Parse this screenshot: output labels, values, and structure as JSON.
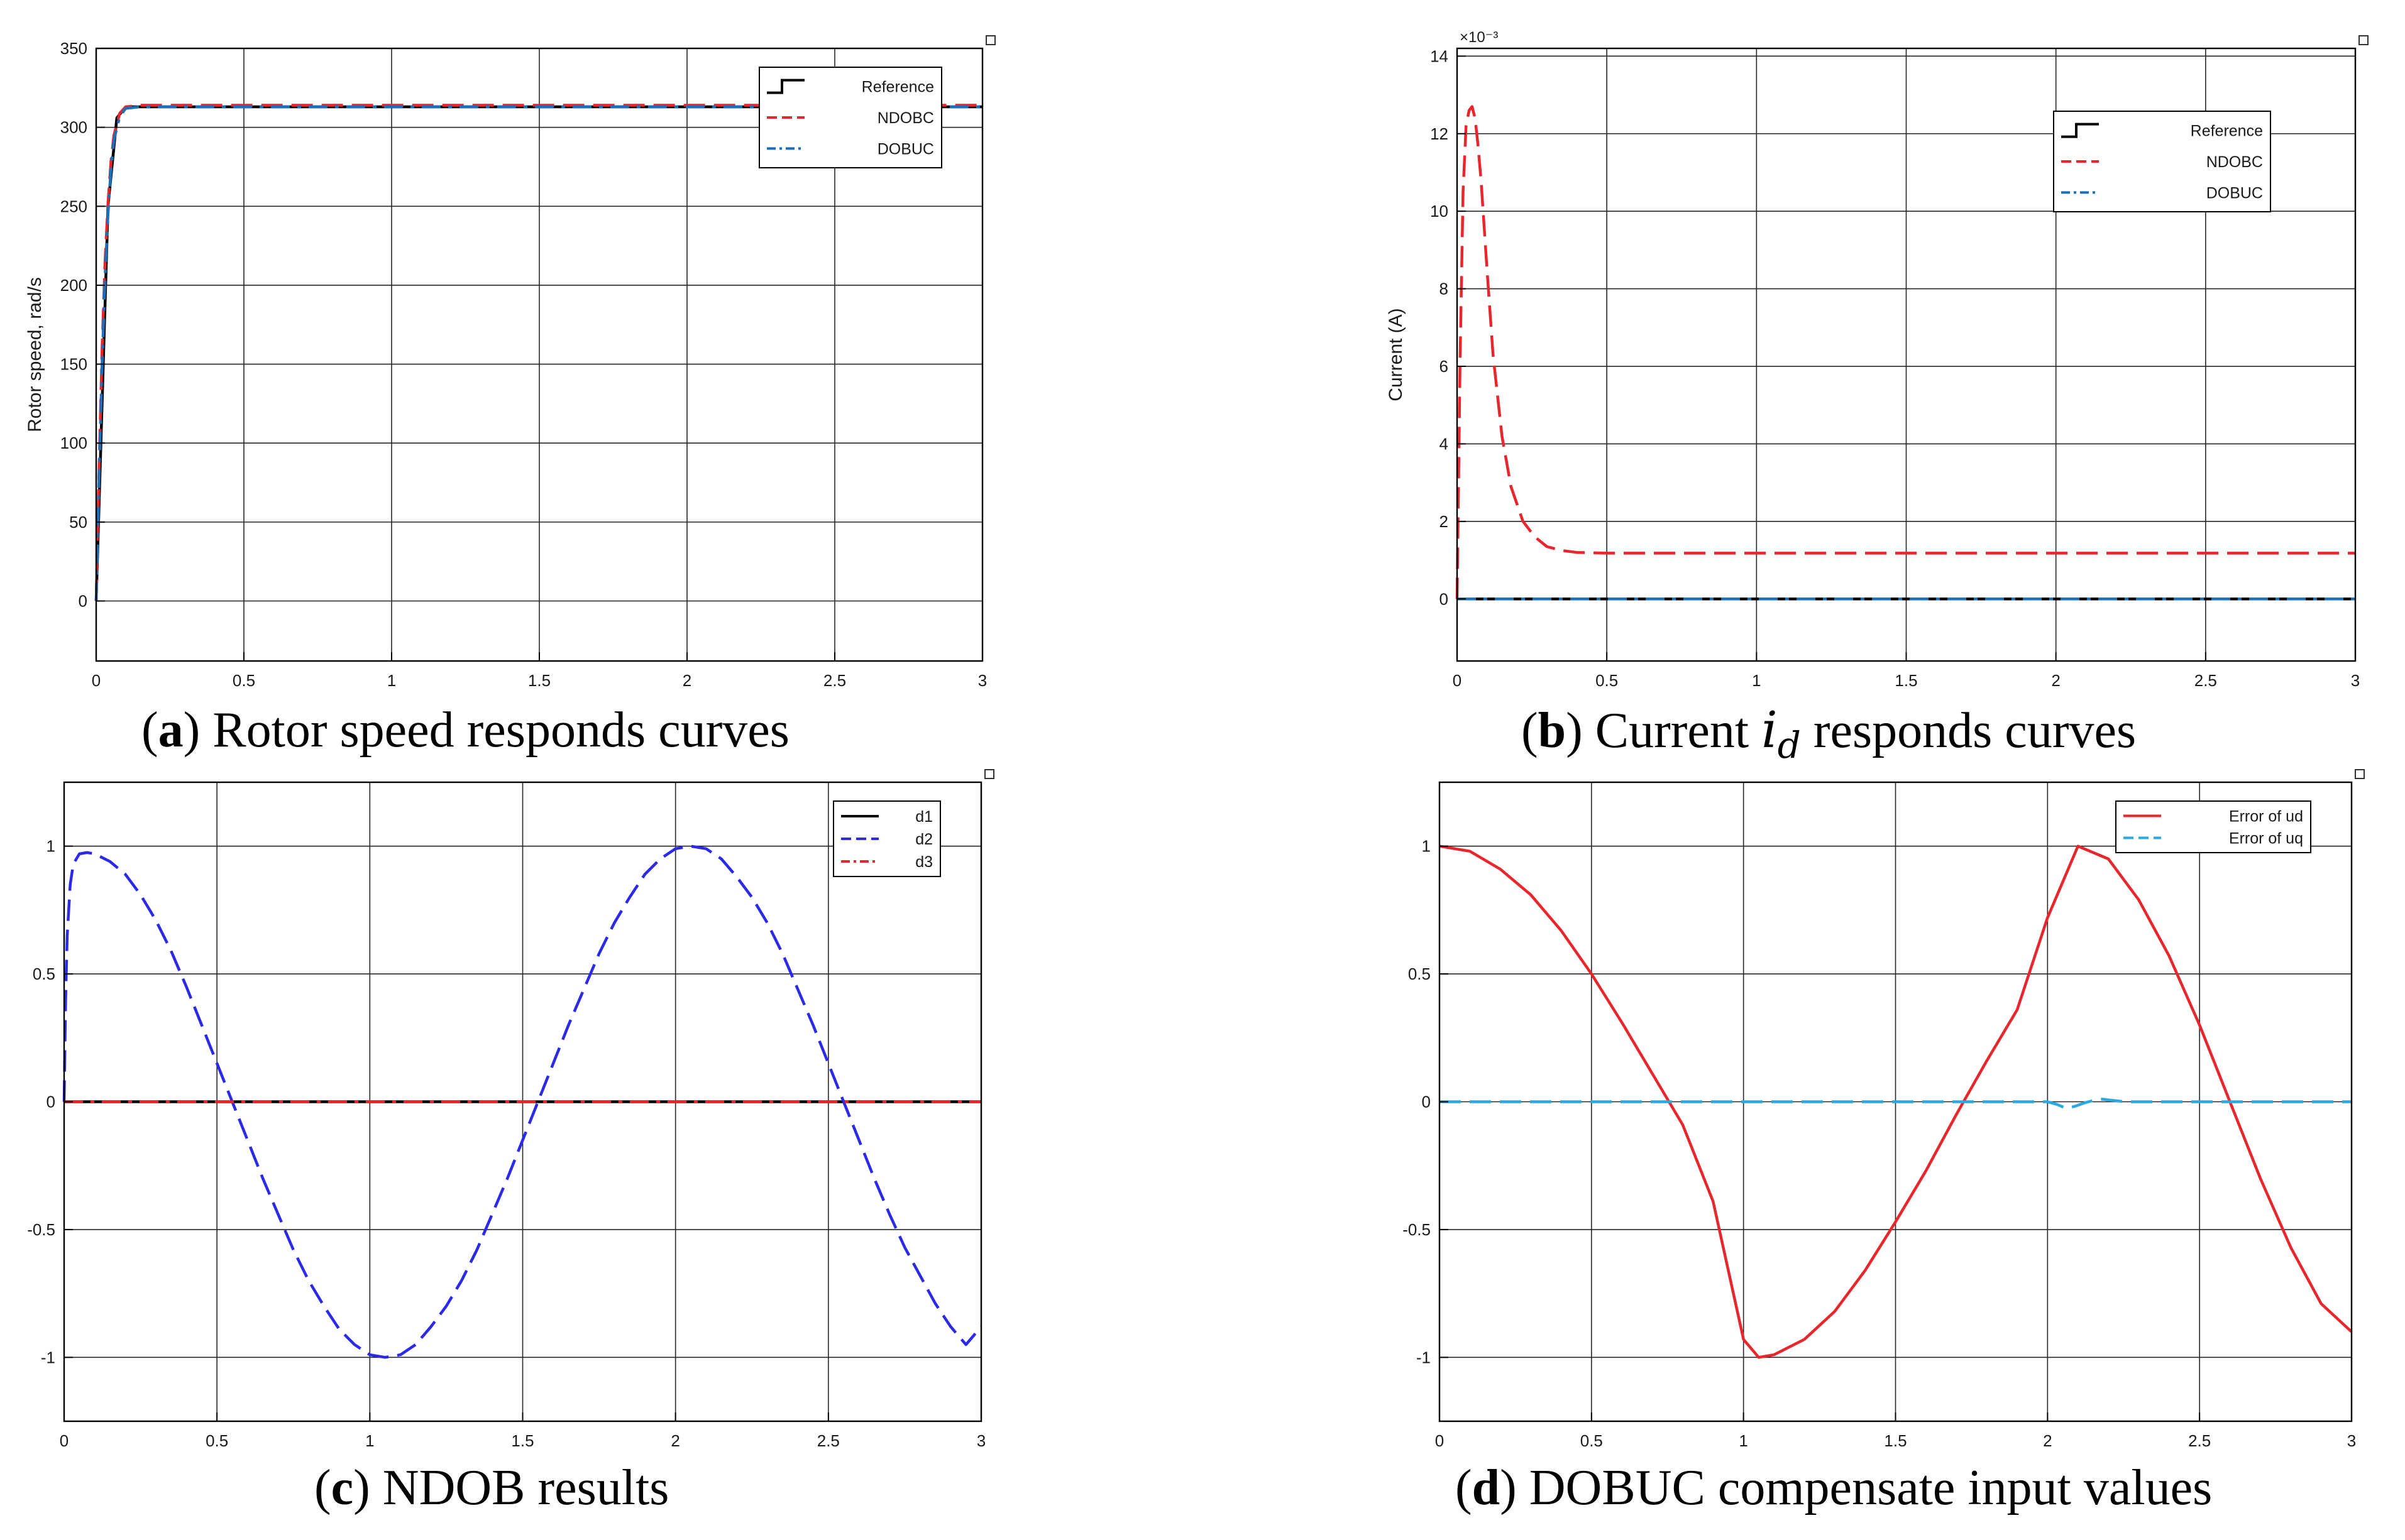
{
  "colors": {
    "reference": "#000000",
    "ndobc": "#e8262b",
    "dobuc": "#1c6fb8",
    "d1": "#000000",
    "d2": "#2a2ae8",
    "d3": "#e8262b",
    "err_ud": "#e8262b",
    "err_uq": "#29a9e0",
    "grid": "#262626",
    "axis": "#000000"
  },
  "captions": [
    {
      "open": "(",
      "letter": "a",
      "close": ")",
      "text": " Rotor speed responds curves",
      "symbol": "",
      "text_after": ""
    },
    {
      "open": "(",
      "letter": "b",
      "close": ")",
      "text": " Current ",
      "symbol": "i",
      "subscript": "d",
      "text_after": " responds curves"
    },
    {
      "open": "(",
      "letter": "c",
      "close": ")",
      "text": " NDOB results",
      "symbol": "",
      "text_after": ""
    },
    {
      "open": "(",
      "letter": "d",
      "close": ")",
      "text": " DOBUC compensate input values",
      "symbol": "",
      "text_after": ""
    }
  ],
  "chart_data": [
    {
      "id": "a",
      "type": "line",
      "title": "",
      "xlabel": "",
      "ylabel": "Rotor speed, rad/s",
      "xlim": [
        0,
        3
      ],
      "ylim": [
        -38,
        350
      ],
      "xticks": [
        0,
        0.5,
        1,
        1.5,
        2,
        2.5,
        3
      ],
      "xtick_labels": [
        "0",
        "0.5",
        "1",
        "1.5",
        "2",
        "2.5",
        "3"
      ],
      "yticks": [
        0,
        50,
        100,
        150,
        200,
        250,
        300,
        350
      ],
      "ytick_labels": [
        "0",
        "50",
        "100",
        "150",
        "200",
        "250",
        "300",
        "350"
      ],
      "exponent_label": "",
      "grid": true,
      "legend": "top-right",
      "series": [
        {
          "name": "Reference",
          "style": "step",
          "color_key": "reference",
          "x": [
            0,
            0.04,
            0.07,
            0.1,
            3
          ],
          "y": [
            0,
            250,
            306,
            313,
            313
          ]
        },
        {
          "name": "NDOBC",
          "style": "dashed",
          "color_key": "ndobc",
          "x": [
            0,
            0.01,
            0.02,
            0.03,
            0.04,
            0.05,
            0.06,
            0.08,
            0.1,
            0.15,
            3
          ],
          "y": [
            0,
            85,
            160,
            215,
            252,
            278,
            295,
            309,
            313,
            314,
            314
          ]
        },
        {
          "name": "DOBUC",
          "style": "dashdot",
          "color_key": "dobuc",
          "x": [
            0,
            0.01,
            0.02,
            0.03,
            0.04,
            0.05,
            0.06,
            0.08,
            0.1,
            0.15,
            3
          ],
          "y": [
            0,
            80,
            150,
            205,
            245,
            273,
            292,
            307,
            312,
            313,
            313
          ]
        }
      ]
    },
    {
      "id": "b",
      "type": "line",
      "title": "",
      "xlabel": "",
      "ylabel": "Current (A)",
      "xlim": [
        0,
        3
      ],
      "ylim": [
        -0.0016,
        0.0142
      ],
      "xticks": [
        0,
        0.5,
        1,
        1.5,
        2,
        2.5,
        3
      ],
      "xtick_labels": [
        "0",
        "0.5",
        "1",
        "1.5",
        "2",
        "2.5",
        "3"
      ],
      "yticks": [
        0,
        0.002,
        0.004,
        0.006,
        0.008,
        0.01,
        0.012,
        0.014
      ],
      "ytick_labels": [
        "0",
        "2",
        "4",
        "6",
        "8",
        "10",
        "12",
        "14"
      ],
      "exponent_label": "×10⁻³",
      "grid": true,
      "legend": "top-right",
      "series": [
        {
          "name": "Reference",
          "style": "step",
          "color_key": "reference",
          "x": [
            0,
            3
          ],
          "y": [
            0,
            0
          ]
        },
        {
          "name": "NDOBC",
          "style": "dashed",
          "color_key": "ndobc",
          "x": [
            0,
            0.01,
            0.02,
            0.03,
            0.04,
            0.05,
            0.06,
            0.07,
            0.08,
            0.1,
            0.12,
            0.15,
            0.18,
            0.22,
            0.26,
            0.3,
            0.35,
            0.4,
            0.5,
            3
          ],
          "y": [
            0,
            0.0062,
            0.0105,
            0.0122,
            0.0126,
            0.0127,
            0.0124,
            0.0117,
            0.0108,
            0.0085,
            0.0063,
            0.0042,
            0.0029,
            0.002,
            0.0016,
            0.00135,
            0.00125,
            0.0012,
            0.00118,
            0.00118
          ]
        },
        {
          "name": "DOBUC",
          "style": "dashdot",
          "color_key": "dobuc",
          "x": [
            0,
            3
          ],
          "y": [
            0,
            0
          ]
        }
      ]
    },
    {
      "id": "c",
      "type": "line",
      "title": "",
      "xlabel": "",
      "ylabel": "",
      "xlim": [
        0,
        3
      ],
      "ylim": [
        -1.25,
        1.25
      ],
      "xticks": [
        0,
        0.5,
        1,
        1.5,
        2,
        2.5,
        3
      ],
      "xtick_labels": [
        "0",
        "0.5",
        "1",
        "1.5",
        "2",
        "2.5",
        "3"
      ],
      "yticks": [
        -1,
        -0.5,
        0,
        0.5,
        1
      ],
      "ytick_labels": [
        "-1",
        "-0.5",
        "0",
        "0.5",
        "1"
      ],
      "exponent_label": "",
      "grid": true,
      "legend": "top-right",
      "series": [
        {
          "name": "d1",
          "style": "solid",
          "color_key": "d1",
          "x": [
            0,
            3
          ],
          "y": [
            0,
            0
          ]
        },
        {
          "name": "d2",
          "style": "dashed",
          "color_key": "d2",
          "x": [
            0,
            0.005,
            0.01,
            0.02,
            0.03,
            0.05,
            0.075,
            0.1,
            0.15,
            0.2,
            0.25,
            0.3,
            0.35,
            0.4,
            0.45,
            0.5,
            0.55,
            0.6,
            0.65,
            0.7,
            0.75,
            0.8,
            0.85,
            0.9,
            0.95,
            1.0,
            1.05,
            1.1,
            1.15,
            1.2,
            1.25,
            1.3,
            1.35,
            1.4,
            1.45,
            1.5,
            1.55,
            1.6,
            1.65,
            1.7,
            1.75,
            1.8,
            1.85,
            1.9,
            1.95,
            2.0,
            2.05,
            2.1,
            2.15,
            2.2,
            2.25,
            2.3,
            2.35,
            2.4,
            2.45,
            2.5,
            2.55,
            2.6,
            2.65,
            2.7,
            2.75,
            2.8,
            2.85,
            2.9,
            2.95,
            3.0
          ],
          "y": [
            0,
            0.4,
            0.65,
            0.85,
            0.93,
            0.97,
            0.975,
            0.97,
            0.94,
            0.89,
            0.81,
            0.71,
            0.59,
            0.45,
            0.3,
            0.15,
            0.0,
            -0.15,
            -0.3,
            -0.44,
            -0.58,
            -0.7,
            -0.8,
            -0.89,
            -0.95,
            -0.99,
            -1.0,
            -0.99,
            -0.95,
            -0.88,
            -0.8,
            -0.7,
            -0.58,
            -0.44,
            -0.3,
            -0.15,
            0.0,
            0.15,
            0.3,
            0.44,
            0.58,
            0.7,
            0.8,
            0.89,
            0.95,
            0.99,
            1.0,
            0.99,
            0.95,
            0.88,
            0.8,
            0.7,
            0.58,
            0.44,
            0.3,
            0.15,
            0.0,
            -0.15,
            -0.3,
            -0.44,
            -0.57,
            -0.68,
            -0.79,
            -0.88,
            -0.95,
            -0.88
          ]
        },
        {
          "name": "d3",
          "style": "dashdot",
          "color_key": "d3",
          "x": [
            0,
            3
          ],
          "y": [
            0,
            0
          ]
        }
      ]
    },
    {
      "id": "d",
      "type": "line",
      "title": "",
      "xlabel": "",
      "ylabel": "",
      "xlim": [
        0,
        3
      ],
      "ylim": [
        -1.25,
        1.25
      ],
      "xticks": [
        0,
        0.5,
        1,
        1.5,
        2,
        2.5,
        3
      ],
      "xtick_labels": [
        "0",
        "0.5",
        "1",
        "1.5",
        "2",
        "2.5",
        "3"
      ],
      "yticks": [
        -1,
        -0.5,
        0,
        0.5,
        1
      ],
      "ytick_labels": [
        "-1",
        "-0.5",
        "0",
        "0.5",
        "1"
      ],
      "exponent_label": "",
      "grid": true,
      "legend": "top-right",
      "series": [
        {
          "name": "Error of ud",
          "style": "solid",
          "color_key": "err_ud",
          "x": [
            0,
            0.1,
            0.2,
            0.3,
            0.4,
            0.5,
            0.6,
            0.7,
            0.8,
            0.9,
            1.0,
            1.05,
            1.1,
            1.2,
            1.3,
            1.4,
            1.5,
            1.6,
            1.7,
            1.8,
            1.9,
            2.0,
            2.1,
            2.2,
            2.3,
            2.4,
            2.5,
            2.6,
            2.7,
            2.8,
            2.9,
            3.0
          ],
          "y": [
            1.0,
            0.98,
            0.91,
            0.81,
            0.67,
            0.5,
            0.31,
            0.11,
            -0.09,
            -0.39,
            -0.93,
            -1.0,
            -0.99,
            -0.93,
            -0.82,
            -0.66,
            -0.47,
            -0.27,
            -0.05,
            0.16,
            0.36,
            0.72,
            1.0,
            0.95,
            0.79,
            0.57,
            0.3,
            0.0,
            -0.3,
            -0.57,
            -0.79,
            -0.9
          ]
        },
        {
          "name": "Error of uq",
          "style": "dashed",
          "color_key": "err_uq",
          "x": [
            0,
            2.0,
            2.03,
            2.06,
            2.09,
            2.12,
            2.15,
            2.18,
            2.21,
            2.24,
            2.27,
            3.0
          ],
          "y": [
            0,
            0,
            -0.01,
            -0.025,
            -0.018,
            -0.005,
            0.005,
            0.01,
            0.006,
            0.002,
            0,
            0
          ]
        }
      ]
    }
  ]
}
